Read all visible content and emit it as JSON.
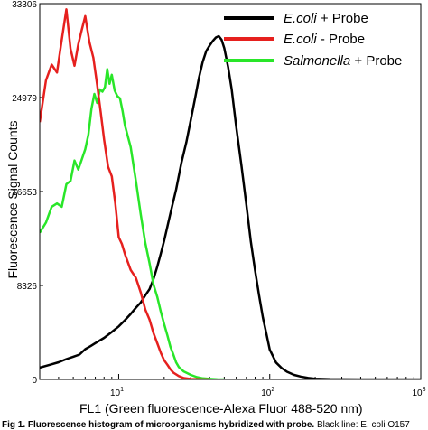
{
  "chart_data": {
    "type": "line",
    "xscale": "log",
    "xlim": [
      3,
      1000
    ],
    "ylim": [
      0,
      33306
    ],
    "xlabel": "FL1 (Green fluorescence-Alexa Fluor 488-520 nm)",
    "ylabel": "Fluorescence Signal Counts",
    "yticks": [
      "0",
      "8326",
      "16653",
      "24979",
      "33306"
    ],
    "xticks": [
      {
        "base": "10",
        "exp": "1",
        "value": 10
      },
      {
        "base": "10",
        "exp": "2",
        "value": 100
      },
      {
        "base": "10",
        "exp": "3",
        "value": 1000
      }
    ],
    "legend_position": "top-right",
    "series": [
      {
        "name": "E.coli + Probe",
        "name_italic": "E.coli",
        "name_rest": " + Probe",
        "color": "#000000",
        "x": [
          3.0,
          3.5,
          4.0,
          4.5,
          5.0,
          5.5,
          6.0,
          6.5,
          7.0,
          8.0,
          9.0,
          10,
          11,
          12,
          13,
          14,
          15,
          16,
          17,
          18,
          19,
          20,
          22,
          24,
          26,
          28,
          30,
          32,
          34,
          36,
          38,
          40,
          42,
          44,
          46,
          48,
          50,
          53,
          56,
          60,
          65,
          70,
          75,
          80,
          85,
          90,
          95,
          100,
          110,
          120,
          130,
          145,
          160,
          180,
          200,
          250,
          300,
          400,
          500,
          600,
          800,
          1000
        ],
        "values": [
          1050,
          1300,
          1520,
          1800,
          2010,
          2200,
          2680,
          2950,
          3220,
          3680,
          4200,
          4700,
          5250,
          5800,
          6350,
          6820,
          7450,
          8000,
          8900,
          10000,
          11150,
          12300,
          14700,
          16850,
          19200,
          21000,
          23000,
          24900,
          26750,
          28150,
          29100,
          29600,
          30000,
          30300,
          30420,
          30100,
          29350,
          27700,
          25700,
          22400,
          18950,
          15500,
          12200,
          9650,
          7450,
          5500,
          4050,
          2650,
          1500,
          1000,
          680,
          400,
          260,
          130,
          60,
          20,
          10,
          0,
          0,
          0,
          0,
          0
        ]
      },
      {
        "name": "E.coli - Probe",
        "name_italic": "E.coli",
        "name_rest": " - Probe",
        "color": "#e6201e",
        "x": [
          3.0,
          3.3,
          3.6,
          3.9,
          4.2,
          4.5,
          4.8,
          5.1,
          5.4,
          5.7,
          6.0,
          6.4,
          6.8,
          7.2,
          7.6,
          8.0,
          8.5,
          9.0,
          9.5,
          10,
          10.5,
          11,
          12,
          13,
          14,
          15,
          16,
          17,
          18,
          19,
          20,
          21,
          22,
          23,
          25,
          27,
          30,
          35,
          40
        ],
        "values": [
          22800,
          26500,
          27900,
          27200,
          30100,
          32800,
          29300,
          27800,
          29700,
          31000,
          32200,
          29900,
          28500,
          26100,
          23700,
          21250,
          18850,
          18000,
          15600,
          12600,
          12000,
          11100,
          9700,
          9000,
          7700,
          6200,
          5300,
          4100,
          3200,
          2350,
          1700,
          1300,
          900,
          600,
          300,
          120,
          40,
          10,
          0
        ]
      },
      {
        "name": "Salmonella + Probe",
        "name_italic": "Salmonella",
        "name_rest": " + Probe",
        "color": "#29e629",
        "x": [
          3.0,
          3.3,
          3.6,
          3.9,
          4.2,
          4.5,
          4.8,
          5.1,
          5.4,
          5.7,
          6.0,
          6.3,
          6.6,
          6.9,
          7.2,
          7.5,
          7.8,
          8.1,
          8.4,
          8.7,
          9.0,
          9.4,
          9.8,
          10.2,
          10.6,
          11,
          12,
          13,
          14,
          15,
          16,
          17,
          18,
          19,
          20,
          21,
          22,
          23,
          24,
          25,
          27,
          30,
          33,
          36,
          40,
          45,
          50
        ],
        "values": [
          13000,
          13900,
          15300,
          15600,
          15300,
          17300,
          17600,
          19400,
          18600,
          19500,
          20400,
          21700,
          24000,
          25300,
          24500,
          25700,
          25500,
          25900,
          27500,
          26200,
          27000,
          25600,
          25100,
          24900,
          23800,
          22500,
          20600,
          17600,
          14600,
          12100,
          10300,
          8400,
          7300,
          6000,
          4900,
          3900,
          2900,
          2200,
          1500,
          1100,
          700,
          400,
          200,
          100,
          50,
          10,
          0
        ]
      }
    ]
  },
  "caption": {
    "bold": "Fig 1. Fluorescence histogram of microorganisms hybridized with probe.",
    "rest": " Black line: E. coli O157"
  }
}
